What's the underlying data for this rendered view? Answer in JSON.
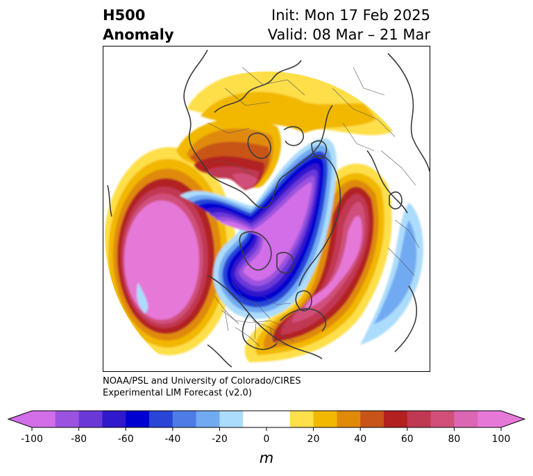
{
  "header": {
    "title_line1": "H500",
    "title_line2": "Anomaly",
    "init": "Init: Mon 17 Feb 2025",
    "valid": "Valid: 08 Mar – 21 Mar"
  },
  "credit": {
    "line1": "NOAA/PSL and University of Colorado/CIRES",
    "line2": "Experimental LIM Forecast (v2.0)"
  },
  "colorbar": {
    "unit": "m",
    "ticks": [
      "-100",
      "-80",
      "-60",
      "-40",
      "-20",
      "0",
      "20",
      "40",
      "60",
      "80",
      "100"
    ],
    "colors": [
      "#d16ee8",
      "#9b52de",
      "#6b38d8",
      "#3018cc",
      "#0000d0",
      "#2845d6",
      "#4e7ce6",
      "#72aaf2",
      "#acdcfb",
      "#ffffff",
      "#ffffff",
      "#ffdf4a",
      "#f2b800",
      "#e08a0a",
      "#c85418",
      "#b22020",
      "#c03852",
      "#d0507a",
      "#dc66b4",
      "#e678d8"
    ],
    "extend_colors": {
      "low": "#d16ee8",
      "high": "#e678d8"
    }
  },
  "map": {
    "projection": "north-polar-stereographic",
    "region": "Northern Hemisphere",
    "field": "500 hPa geopotential height anomaly"
  }
}
